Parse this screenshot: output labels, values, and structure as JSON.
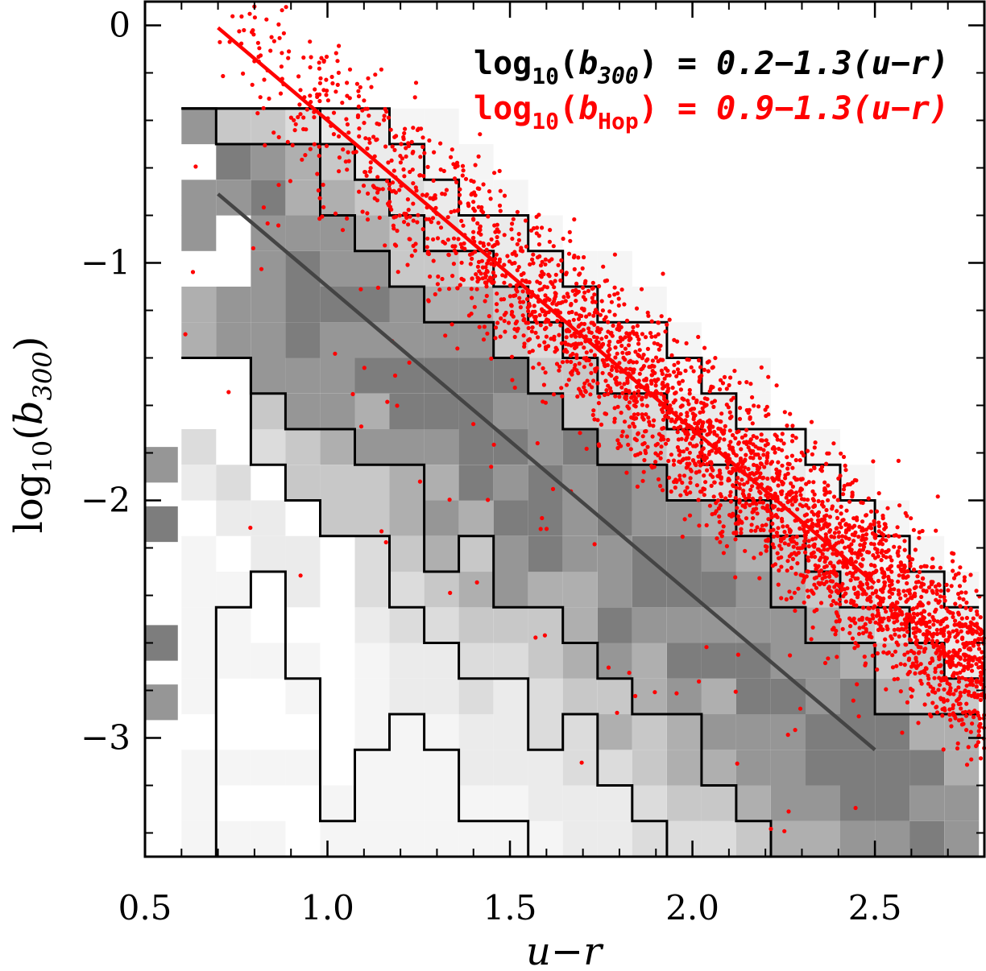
{
  "chart_data": {
    "type": "scatter",
    "xlabel_main": "u",
    "xlabel_rest": "−r",
    "ylabel_prefix": "log",
    "ylabel_sub": "10",
    "ylabel_open": "(",
    "ylabel_b": "b",
    "ylabel_b_sub": "300",
    "ylabel_close": ")",
    "xlim": [
      0.5,
      2.8
    ],
    "ylim": [
      -3.5,
      0.1
    ],
    "xticks": [
      0.5,
      1.0,
      1.5,
      2.0,
      2.5
    ],
    "xtick_labels": [
      "0.5",
      "1.0",
      "1.5",
      "2.0",
      "2.5"
    ],
    "yticks": [
      0,
      -1,
      -2,
      -3
    ],
    "ytick_labels": [
      "0",
      "−1",
      "−2",
      "−3"
    ],
    "x_minor_step": 0.1,
    "y_minor_step": 0.2,
    "legend": [
      {
        "prefix": "log",
        "sub": "10",
        "open": "(",
        "b": "b",
        "b_sub": "300",
        "close": ")",
        "equation": " = 0.2−1.3(u−r)",
        "color": "#000000"
      },
      {
        "prefix": "log",
        "sub": "10",
        "open": "(",
        "b": "b",
        "b_sub": "Hop",
        "close": ")",
        "equation": " = 0.9−1.3(u−r)",
        "color": "#ff0000"
      }
    ],
    "fit_lines": [
      {
        "name": "log10(b300) = 0.2-1.3(u-r)",
        "x": [
          0.7,
          2.5
        ],
        "intercept": 0.2,
        "slope": -1.3,
        "color": "#444444"
      },
      {
        "name": "log10(bHop) = 0.9-1.3(u-r)",
        "x": [
          0.7,
          2.5
        ],
        "intercept": 0.9,
        "slope": -1.3,
        "color": "#ff0000"
      }
    ],
    "histogram": {
      "bin_width_x": 0.095,
      "bin_height_y": 0.15,
      "x_start": 0.6,
      "n_bins_x": 23,
      "y_range": [
        -3.5,
        -0.35
      ],
      "gray_levels": [
        245,
        235,
        220,
        200,
        175,
        150,
        125
      ]
    },
    "contours": [
      {
        "name": "outer-contour",
        "level": 0.1
      },
      {
        "name": "middle-contour",
        "level": 0.35
      },
      {
        "name": "inner-contour",
        "level": 0.65
      }
    ],
    "scatter": {
      "name": "Hopkins sample",
      "color": "#ff0000",
      "n_points": 3200,
      "intercept": 0.9,
      "slope": -1.3,
      "scatter_dex": 0.17,
      "x_range": [
        0.7,
        2.8
      ]
    },
    "colors": {
      "scatter": "#ff0000",
      "fit_300": "#444444",
      "contour": "#000000",
      "axes": "#000000"
    }
  }
}
